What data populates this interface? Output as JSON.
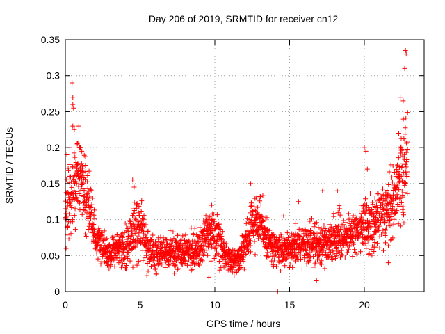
{
  "chart_data": {
    "type": "scatter",
    "title": "Day 206 of 2019, SRMTID for receiver cn12",
    "xlabel": "GPS time / hours",
    "ylabel": "SRMTID / TECUs",
    "xlim": [
      0,
      24
    ],
    "ylim": [
      0,
      0.35
    ],
    "xticks": [
      0,
      5,
      10,
      15,
      20
    ],
    "xtick_labels": [
      "0",
      "5",
      "10",
      "15",
      "20"
    ],
    "yticks": [
      0,
      0.05,
      0.1,
      0.15,
      0.2,
      0.25,
      0.3,
      0.35
    ],
    "ytick_labels": [
      "0",
      "0.05",
      "0.1",
      "0.15",
      "0.2",
      "0.25",
      "0.3",
      "0.35"
    ],
    "grid": true,
    "marker": "+",
    "color": "#ff0000",
    "series": [
      {
        "name": "SRMTID",
        "profile": {
          "hours": [
            0.0,
            0.3,
            0.6,
            1.0,
            1.5,
            2.0,
            2.5,
            3.0,
            3.5,
            4.0,
            4.5,
            5.0,
            5.5,
            6.0,
            7.0,
            8.0,
            9.0,
            9.5,
            10.0,
            10.5,
            11.0,
            11.5,
            12.0,
            12.5,
            13.0,
            13.5,
            14.0,
            15.0,
            16.0,
            17.0,
            18.0,
            19.0,
            20.0,
            20.5,
            21.0,
            21.5,
            22.0,
            22.5,
            22.9
          ],
          "typical_values": [
            0.12,
            0.13,
            0.15,
            0.15,
            0.12,
            0.08,
            0.06,
            0.055,
            0.06,
            0.06,
            0.08,
            0.09,
            0.06,
            0.05,
            0.055,
            0.055,
            0.06,
            0.085,
            0.08,
            0.06,
            0.045,
            0.04,
            0.06,
            0.1,
            0.1,
            0.07,
            0.06,
            0.06,
            0.065,
            0.065,
            0.075,
            0.08,
            0.09,
            0.09,
            0.1,
            0.11,
            0.13,
            0.16,
            0.2
          ],
          "spread": [
            0.05,
            0.06,
            0.07,
            0.06,
            0.05,
            0.03,
            0.025,
            0.025,
            0.025,
            0.03,
            0.04,
            0.04,
            0.03,
            0.025,
            0.025,
            0.025,
            0.03,
            0.035,
            0.035,
            0.03,
            0.02,
            0.02,
            0.03,
            0.04,
            0.04,
            0.03,
            0.025,
            0.025,
            0.03,
            0.03,
            0.035,
            0.035,
            0.04,
            0.045,
            0.045,
            0.05,
            0.06,
            0.07,
            0.09
          ]
        },
        "points": [
          {
            "x": 0.05,
            "y": 0.06
          },
          {
            "x": 0.1,
            "y": 0.19
          },
          {
            "x": 0.3,
            "y": 0.2
          },
          {
            "x": 0.45,
            "y": 0.29
          },
          {
            "x": 0.5,
            "y": 0.27
          },
          {
            "x": 0.5,
            "y": 0.26
          },
          {
            "x": 0.55,
            "y": 0.255
          },
          {
            "x": 0.5,
            "y": 0.23
          },
          {
            "x": 0.6,
            "y": 0.225
          },
          {
            "x": 0.8,
            "y": 0.205
          },
          {
            "x": 0.9,
            "y": 0.23
          },
          {
            "x": 1.0,
            "y": 0.2
          },
          {
            "x": 1.1,
            "y": 0.195
          },
          {
            "x": 4.5,
            "y": 0.155
          },
          {
            "x": 4.6,
            "y": 0.145
          },
          {
            "x": 9.6,
            "y": 0.02
          },
          {
            "x": 12.4,
            "y": 0.15
          },
          {
            "x": 14.2,
            "y": 0.0
          },
          {
            "x": 14.6,
            "y": 0.105
          },
          {
            "x": 15.6,
            "y": 0.125
          },
          {
            "x": 16.8,
            "y": 0.015
          },
          {
            "x": 17.2,
            "y": 0.14
          },
          {
            "x": 18.2,
            "y": 0.14
          },
          {
            "x": 20.0,
            "y": 0.2
          },
          {
            "x": 20.1,
            "y": 0.195
          },
          {
            "x": 20.2,
            "y": 0.17
          },
          {
            "x": 21.6,
            "y": 0.04
          },
          {
            "x": 22.3,
            "y": 0.22
          },
          {
            "x": 22.4,
            "y": 0.27
          },
          {
            "x": 22.6,
            "y": 0.265
          },
          {
            "x": 22.7,
            "y": 0.31
          },
          {
            "x": 22.75,
            "y": 0.335
          },
          {
            "x": 22.8,
            "y": 0.33
          },
          {
            "x": 22.6,
            "y": 0.11
          },
          {
            "x": 22.7,
            "y": 0.15
          }
        ]
      }
    ]
  }
}
